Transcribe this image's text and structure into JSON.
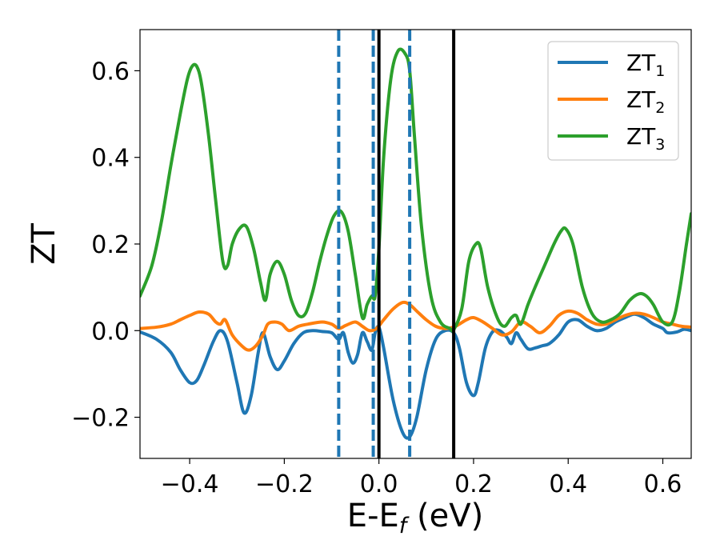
{
  "chart_data": {
    "type": "line",
    "xlabel": "E-E",
    "xlabel_sub": "f",
    "xlabel_unit": " (eV)",
    "ylabel": "ZT",
    "xlim": [
      -0.505,
      0.66
    ],
    "ylim": [
      -0.295,
      0.695
    ],
    "xticks": [
      -0.4,
      -0.2,
      0.0,
      0.2,
      0.4,
      0.6
    ],
    "xtick_labels": [
      "−0.4",
      "−0.2",
      "0.0",
      "0.2",
      "0.4",
      "0.6"
    ],
    "yticks": [
      -0.2,
      0.0,
      0.2,
      0.4,
      0.6
    ],
    "ytick_labels": [
      "−0.2",
      "0.0",
      "0.2",
      "0.4",
      "0.6"
    ],
    "grid": false,
    "legend_position": "top-right",
    "vlines": [
      {
        "x": -0.085,
        "style": "dashed",
        "color": "#1f77b4"
      },
      {
        "x": -0.012,
        "style": "dashed",
        "color": "#1f77b4"
      },
      {
        "x": 0.065,
        "style": "dashed",
        "color": "#1f77b4"
      },
      {
        "x": 0.0,
        "style": "solid",
        "color": "#000000"
      },
      {
        "x": 0.158,
        "style": "solid",
        "color": "#000000"
      }
    ],
    "series": [
      {
        "name": "ZT",
        "sub": "1",
        "color": "#1f77b4",
        "x": [
          -0.505,
          -0.47,
          -0.44,
          -0.42,
          -0.4,
          -0.385,
          -0.37,
          -0.35,
          -0.335,
          -0.32,
          -0.3,
          -0.285,
          -0.27,
          -0.255,
          -0.245,
          -0.23,
          -0.215,
          -0.2,
          -0.18,
          -0.16,
          -0.14,
          -0.12,
          -0.1,
          -0.085,
          -0.075,
          -0.065,
          -0.055,
          -0.045,
          -0.035,
          -0.025,
          -0.015,
          -0.008,
          0.0,
          0.01,
          0.03,
          0.05,
          0.065,
          0.08,
          0.1,
          0.12,
          0.14,
          0.158,
          0.17,
          0.185,
          0.2,
          0.21,
          0.225,
          0.24,
          0.255,
          0.27,
          0.28,
          0.29,
          0.3,
          0.315,
          0.33,
          0.345,
          0.36,
          0.38,
          0.4,
          0.42,
          0.44,
          0.46,
          0.48,
          0.5,
          0.52,
          0.54,
          0.56,
          0.58,
          0.6,
          0.61,
          0.63,
          0.645,
          0.66
        ],
        "y": [
          -0.003,
          -0.02,
          -0.05,
          -0.09,
          -0.12,
          -0.115,
          -0.08,
          -0.025,
          0.0,
          -0.025,
          -0.12,
          -0.19,
          -0.15,
          -0.05,
          -0.005,
          -0.06,
          -0.09,
          -0.07,
          -0.03,
          -0.005,
          0.0,
          -0.002,
          -0.005,
          -0.02,
          -0.005,
          -0.05,
          -0.075,
          -0.055,
          -0.005,
          -0.025,
          -0.045,
          -0.005,
          0.008,
          -0.04,
          -0.16,
          -0.235,
          -0.245,
          -0.2,
          -0.09,
          -0.02,
          0.0,
          -0.005,
          -0.04,
          -0.12,
          -0.15,
          -0.12,
          -0.04,
          -0.003,
          0.0,
          -0.015,
          -0.03,
          -0.005,
          -0.02,
          -0.042,
          -0.04,
          -0.035,
          -0.03,
          -0.01,
          0.02,
          0.025,
          0.01,
          0.0,
          0.005,
          0.02,
          0.03,
          0.038,
          0.03,
          0.015,
          0.005,
          -0.005,
          -0.003,
          0.003,
          0.0
        ]
      },
      {
        "name": "ZT",
        "sub": "2",
        "color": "#ff7f0e",
        "x": [
          -0.505,
          -0.47,
          -0.44,
          -0.42,
          -0.4,
          -0.38,
          -0.36,
          -0.345,
          -0.335,
          -0.325,
          -0.31,
          -0.29,
          -0.275,
          -0.26,
          -0.245,
          -0.235,
          -0.22,
          -0.205,
          -0.19,
          -0.17,
          -0.15,
          -0.12,
          -0.1,
          -0.085,
          -0.07,
          -0.05,
          -0.035,
          -0.02,
          -0.005,
          0.01,
          0.03,
          0.05,
          0.065,
          0.08,
          0.1,
          0.12,
          0.14,
          0.158,
          0.17,
          0.185,
          0.2,
          0.22,
          0.24,
          0.26,
          0.28,
          0.3,
          0.32,
          0.34,
          0.36,
          0.38,
          0.4,
          0.42,
          0.44,
          0.46,
          0.48,
          0.5,
          0.52,
          0.54,
          0.56,
          0.58,
          0.6,
          0.62,
          0.64,
          0.66
        ],
        "y": [
          0.005,
          0.008,
          0.015,
          0.025,
          0.035,
          0.043,
          0.038,
          0.02,
          0.015,
          0.025,
          -0.01,
          -0.035,
          -0.045,
          -0.035,
          -0.01,
          0.015,
          0.02,
          0.015,
          0.0,
          0.01,
          0.015,
          0.02,
          0.015,
          0.005,
          0.012,
          0.02,
          0.01,
          0.0,
          0.005,
          0.025,
          0.05,
          0.065,
          0.06,
          0.045,
          0.025,
          0.01,
          0.005,
          0.008,
          0.015,
          0.025,
          0.03,
          0.02,
          0.005,
          -0.01,
          -0.003,
          0.02,
          0.01,
          -0.005,
          0.01,
          0.035,
          0.045,
          0.04,
          0.025,
          0.015,
          0.015,
          0.025,
          0.035,
          0.04,
          0.038,
          0.03,
          0.02,
          0.015,
          0.01,
          0.008
        ]
      },
      {
        "name": "ZT",
        "sub": "3",
        "color": "#2ca02c",
        "x": [
          -0.505,
          -0.48,
          -0.46,
          -0.44,
          -0.42,
          -0.405,
          -0.395,
          -0.385,
          -0.375,
          -0.36,
          -0.345,
          -0.33,
          -0.32,
          -0.31,
          -0.295,
          -0.28,
          -0.265,
          -0.25,
          -0.24,
          -0.23,
          -0.215,
          -0.2,
          -0.185,
          -0.17,
          -0.155,
          -0.14,
          -0.125,
          -0.11,
          -0.095,
          -0.08,
          -0.065,
          -0.05,
          -0.035,
          -0.025,
          -0.015,
          -0.008,
          0.0,
          0.01,
          0.025,
          0.04,
          0.055,
          0.065,
          0.075,
          0.09,
          0.11,
          0.13,
          0.15,
          0.158,
          0.175,
          0.19,
          0.205,
          0.215,
          0.23,
          0.25,
          0.265,
          0.28,
          0.29,
          0.3,
          0.315,
          0.33,
          0.35,
          0.37,
          0.385,
          0.395,
          0.41,
          0.43,
          0.45,
          0.47,
          0.49,
          0.51,
          0.53,
          0.55,
          0.565,
          0.58,
          0.6,
          0.62,
          0.635,
          0.65,
          0.66
        ],
        "y": [
          0.08,
          0.15,
          0.25,
          0.38,
          0.5,
          0.58,
          0.61,
          0.61,
          0.57,
          0.45,
          0.3,
          0.16,
          0.15,
          0.2,
          0.235,
          0.24,
          0.19,
          0.11,
          0.07,
          0.13,
          0.16,
          0.13,
          0.07,
          0.035,
          0.04,
          0.09,
          0.16,
          0.22,
          0.265,
          0.275,
          0.23,
          0.13,
          0.03,
          0.06,
          0.08,
          0.08,
          0.19,
          0.4,
          0.58,
          0.645,
          0.64,
          0.6,
          0.45,
          0.24,
          0.08,
          0.02,
          0.005,
          0.002,
          0.05,
          0.16,
          0.2,
          0.19,
          0.1,
          0.03,
          0.01,
          0.03,
          0.035,
          0.015,
          0.06,
          0.1,
          0.15,
          0.2,
          0.23,
          0.235,
          0.2,
          0.1,
          0.04,
          0.02,
          0.025,
          0.04,
          0.07,
          0.085,
          0.08,
          0.06,
          0.02,
          0.02,
          0.09,
          0.2,
          0.27
        ]
      }
    ]
  }
}
